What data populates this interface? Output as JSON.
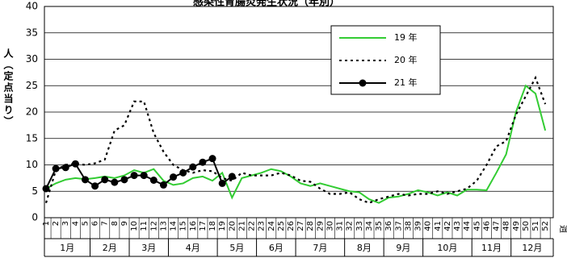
{
  "chart_data": {
    "type": "line",
    "title": "感染性胃腸炎発生状況（年別）",
    "y_label": "人（定点当り）",
    "x_label": "週",
    "categories": [
      "1",
      "2",
      "3",
      "4",
      "5",
      "6",
      "7",
      "8",
      "9",
      "10",
      "11",
      "12",
      "13",
      "14",
      "15",
      "16",
      "17",
      "18",
      "19",
      "20",
      "21",
      "22",
      "23",
      "24",
      "25",
      "26",
      "27",
      "28",
      "29",
      "30",
      "31",
      "32",
      "33",
      "34",
      "35",
      "36",
      "37",
      "38",
      "39",
      "40",
      "41",
      "42",
      "43",
      "44",
      "45",
      "46",
      "47",
      "48",
      "49",
      "50",
      "51",
      "52"
    ],
    "months": [
      "1月",
      "2月",
      "3月",
      "4月",
      "5月",
      "6月",
      "7月",
      "8月",
      "9月",
      "10月",
      "11月",
      "12月"
    ],
    "ylim": [
      0,
      40
    ],
    "yticks": [
      0,
      5,
      10,
      15,
      20,
      25,
      30,
      35,
      40
    ],
    "grid": true,
    "series": [
      {
        "name": "19 年",
        "color": "#33cc33",
        "style": "solid",
        "marker": false,
        "values": [
          5.5,
          6.5,
          7.2,
          7.5,
          7.3,
          7.5,
          7.8,
          7.5,
          8,
          9,
          8.5,
          9.2,
          7,
          6.2,
          6.5,
          7.5,
          7.8,
          7,
          8.5,
          3.8,
          7.5,
          8,
          8.5,
          9.2,
          8.8,
          7.8,
          6.5,
          6,
          6.5,
          6,
          5.5,
          5,
          4.8,
          3.5,
          2.8,
          3.8,
          4,
          4.5,
          5.2,
          4.8,
          4.2,
          4.8,
          4.2,
          5.3,
          5.3,
          5.2,
          8.5,
          12,
          20,
          25,
          23.5,
          16.5
        ]
      },
      {
        "name": "20 年",
        "color": "#000000",
        "style": "dotted",
        "marker": false,
        "values": [
          2.8,
          9,
          10,
          10.2,
          10,
          10.3,
          11,
          16.5,
          17.5,
          22,
          22,
          16,
          12.5,
          10,
          9,
          8.5,
          9,
          8.8,
          7.5,
          7,
          8.5,
          8,
          8,
          8,
          8.5,
          8,
          7,
          6.8,
          5.5,
          4.5,
          4.5,
          4.8,
          3.5,
          2.8,
          3.5,
          4,
          4.5,
          4.2,
          4.5,
          4.5,
          5,
          4.5,
          5,
          5.5,
          7,
          10,
          13.5,
          14.5,
          19.5,
          23,
          26.5,
          21.5
        ]
      },
      {
        "name": "21 年",
        "color": "#000000",
        "style": "solid",
        "marker": true,
        "values": [
          5.5,
          9.3,
          9.5,
          10.2,
          7.2,
          6,
          7.2,
          6.7,
          7.2,
          8,
          8,
          7.1,
          6.2,
          7.7,
          8.5,
          9.6,
          10.5,
          11.2,
          6.5,
          7.8,
          null,
          null,
          null,
          null,
          null,
          null,
          null,
          null,
          null,
          null,
          null,
          null,
          null,
          null,
          null,
          null,
          null,
          null,
          null,
          null,
          null,
          null,
          null,
          null,
          null,
          null,
          null,
          null,
          null,
          null,
          null,
          null
        ]
      }
    ]
  }
}
